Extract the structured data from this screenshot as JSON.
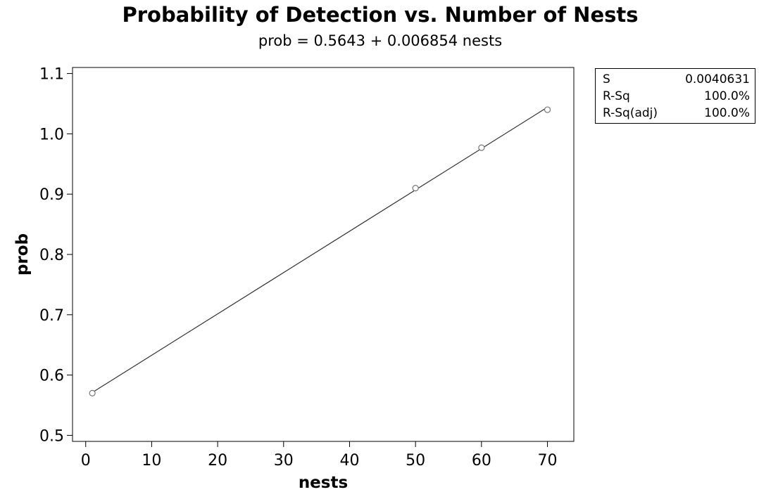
{
  "chart_data": {
    "type": "scatter",
    "title": "Probability of Detection vs. Number of Nests",
    "subtitle": "prob =  0.5643 + 0.006854 nests",
    "xlabel": "nests",
    "ylabel": "prob",
    "xlim": [
      -2,
      74
    ],
    "ylim": [
      0.49,
      1.11
    ],
    "x_ticks": [
      "0",
      "10",
      "20",
      "30",
      "40",
      "50",
      "60",
      "70"
    ],
    "y_ticks": [
      "0.5",
      "0.6",
      "0.7",
      "0.8",
      "0.9",
      "1.0",
      "1.1"
    ],
    "points": [
      {
        "x": 1,
        "y": 0.57
      },
      {
        "x": 50,
        "y": 0.91
      },
      {
        "x": 60,
        "y": 0.977
      },
      {
        "x": 70,
        "y": 1.04
      }
    ],
    "fit_line": {
      "intercept": 0.5643,
      "slope": 0.006854,
      "x_range": [
        1,
        70
      ]
    },
    "grid": false,
    "legend": "none"
  },
  "stats": [
    {
      "label": "S",
      "value": "0.0040631"
    },
    {
      "label": "R-Sq",
      "value": "100.0%"
    },
    {
      "label": "R-Sq(adj)",
      "value": "100.0%"
    }
  ]
}
